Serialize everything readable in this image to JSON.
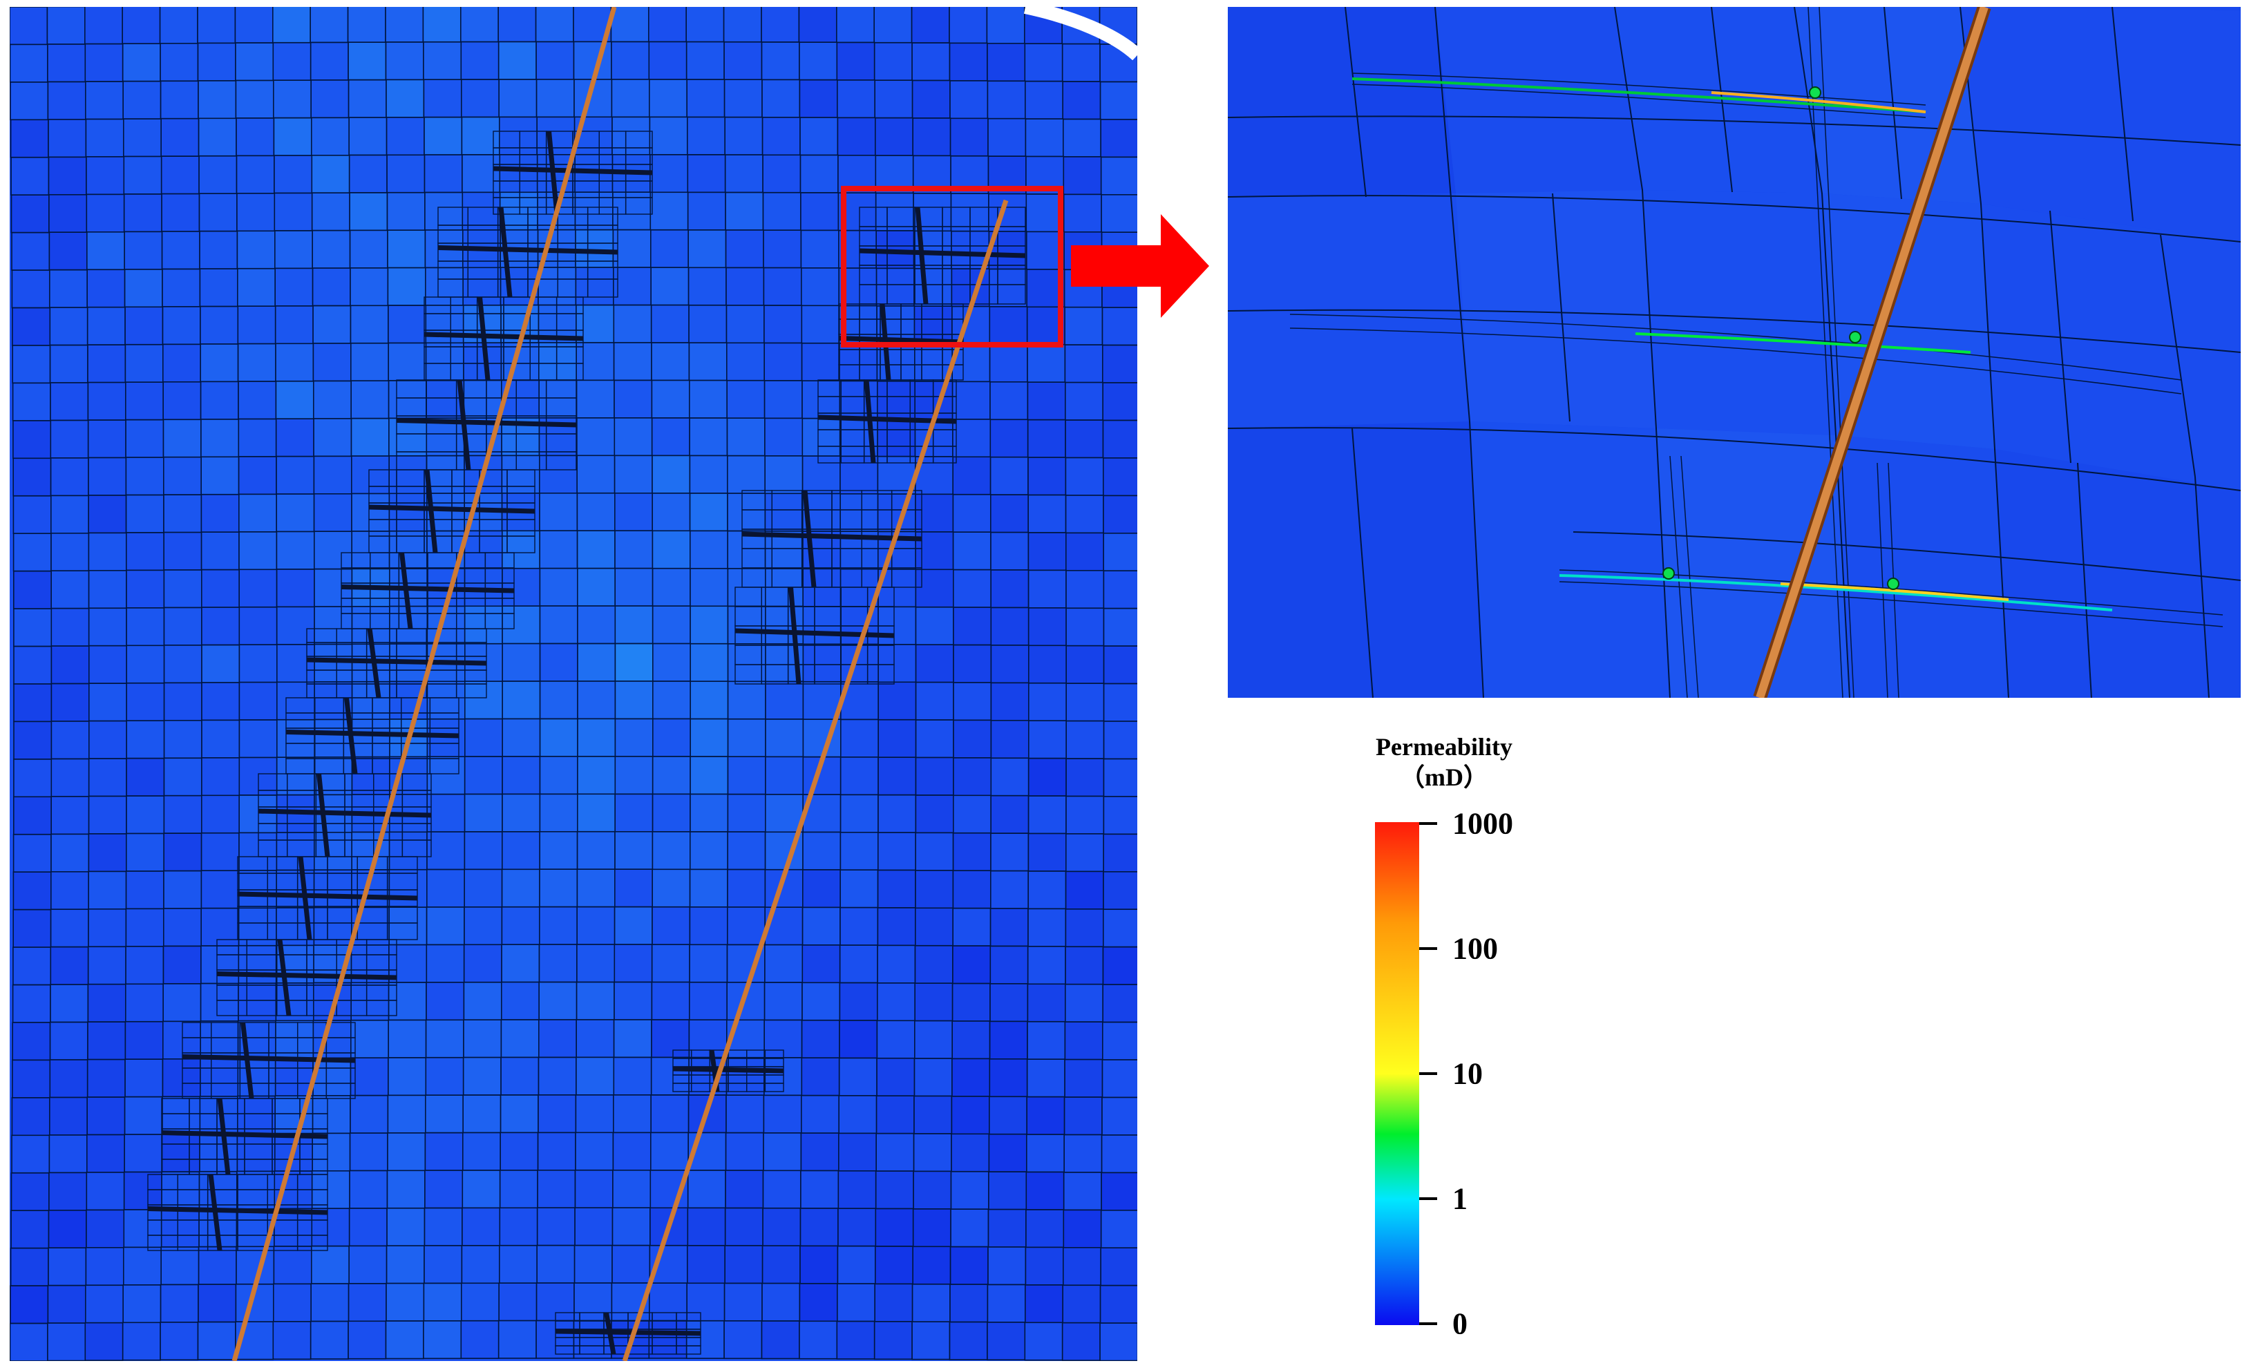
{
  "legend": {
    "title": "Permeability",
    "unit": "（mD）",
    "ticks": [
      "1000",
      "100",
      "10",
      "1",
      "0"
    ],
    "colors": [
      "#ff1a0a",
      "#ff9a08",
      "#ffff1e",
      "#00ee2c",
      "#00e8ff",
      "#0a0af0"
    ]
  },
  "colors": {
    "grid_base": "#1a4fef",
    "grid_light": "#1e78f2",
    "grid_dark": "#1236e8",
    "grid_line": "#001640",
    "well": "#cf7a34",
    "highlight_box": "#ee1111",
    "arrow": "#ff0000",
    "fracture_low": "#00e83a",
    "fracture_high": "#ffb020",
    "fracture_point": "#10e050"
  }
}
